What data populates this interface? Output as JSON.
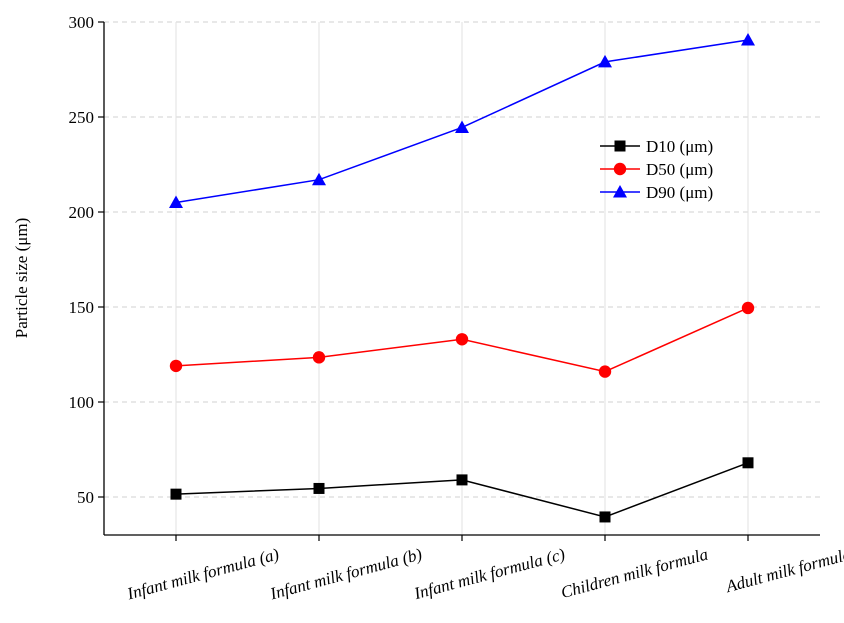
{
  "chart_data": {
    "type": "line",
    "categories": [
      "Infant milk formula (a)",
      "Infant milk  formula (b)",
      "Infant milk  formula (c)",
      "Children milk formula",
      "Adult milk formula"
    ],
    "ylabel": "Particle size (μm)",
    "xlabel": "",
    "ylim": [
      30,
      300
    ],
    "yticks": [
      50,
      100,
      150,
      200,
      250,
      300
    ],
    "grid": true,
    "legend_position": "top-right",
    "series": [
      {
        "name": "D10 (μm)",
        "values": [
          51.5,
          54.5,
          59,
          39.5,
          68
        ],
        "color": "#000000",
        "marker": "square"
      },
      {
        "name": "D50 (μm)",
        "values": [
          119,
          123.5,
          133,
          116,
          149.5
        ],
        "color": "#ff0000",
        "marker": "circle"
      },
      {
        "name": "D90 (μm)",
        "values": [
          205,
          217,
          244.5,
          279,
          290.5
        ],
        "color": "#0000ff",
        "marker": "triangle"
      }
    ]
  }
}
